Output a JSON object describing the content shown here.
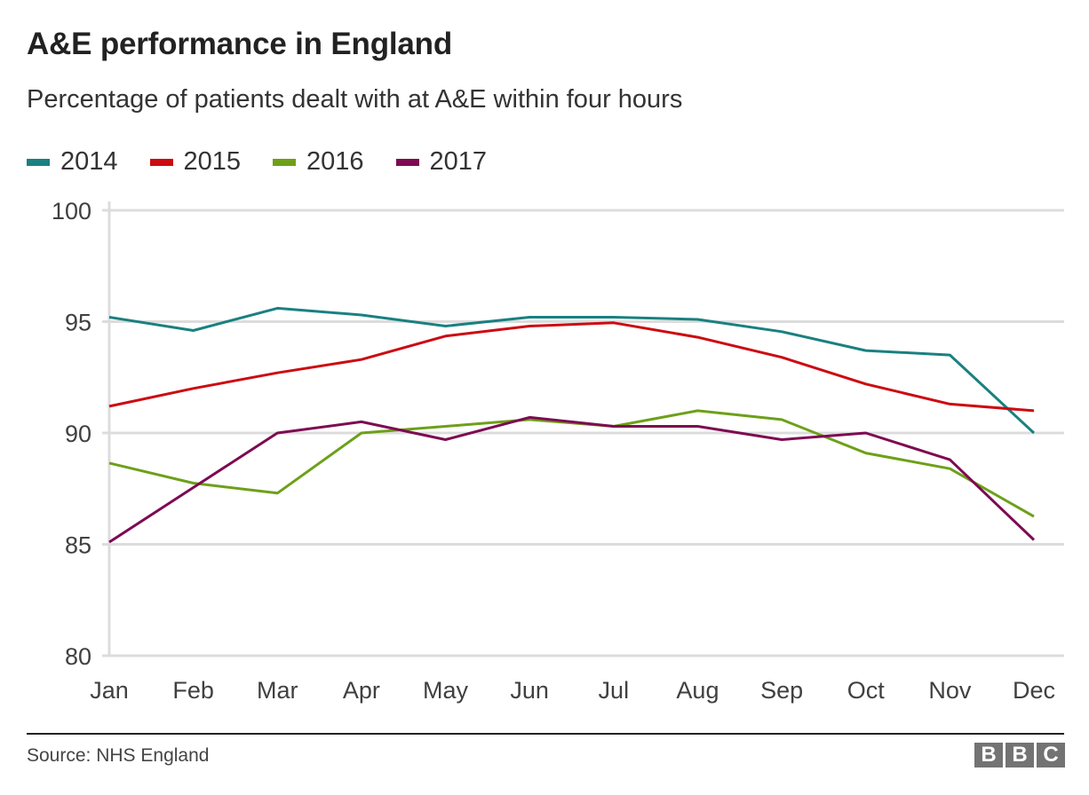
{
  "chart_data": {
    "type": "line",
    "title": "A&E performance in England",
    "subtitle": "Percentage of patients dealt with at A&E within four hours",
    "xlabel": "",
    "ylabel": "",
    "categories": [
      "Jan",
      "Feb",
      "Mar",
      "Apr",
      "May",
      "Jun",
      "Jul",
      "Aug",
      "Sep",
      "Oct",
      "Nov",
      "Dec"
    ],
    "ylim": [
      80,
      100
    ],
    "yticks": [
      100,
      95,
      90,
      85,
      80
    ],
    "grid": true,
    "legend_position": "top-left",
    "series": [
      {
        "name": "2014",
        "color": "#1a8080",
        "values": [
          95.2,
          94.6,
          95.6,
          95.3,
          94.8,
          95.2,
          95.2,
          95.1,
          94.55,
          93.7,
          93.5,
          90.0
        ]
      },
      {
        "name": "2015",
        "color": "#cc0a11",
        "values": [
          91.2,
          92.0,
          92.7,
          93.3,
          94.35,
          94.8,
          94.95,
          94.3,
          93.4,
          92.2,
          91.3,
          91.0
        ]
      },
      {
        "name": "2016",
        "color": "#6da019",
        "values": [
          88.65,
          87.75,
          87.3,
          90.0,
          90.3,
          90.6,
          90.3,
          91.0,
          90.6,
          89.1,
          88.4,
          86.25
        ]
      },
      {
        "name": "2017",
        "color": "#7d0a52",
        "values": [
          85.1,
          87.55,
          90.0,
          90.5,
          89.7,
          90.7,
          90.3,
          90.3,
          89.7,
          90.0,
          88.8,
          85.2
        ]
      }
    ]
  },
  "footer": {
    "source": "Source: NHS England",
    "logo_letters": [
      "B",
      "B",
      "C"
    ]
  }
}
